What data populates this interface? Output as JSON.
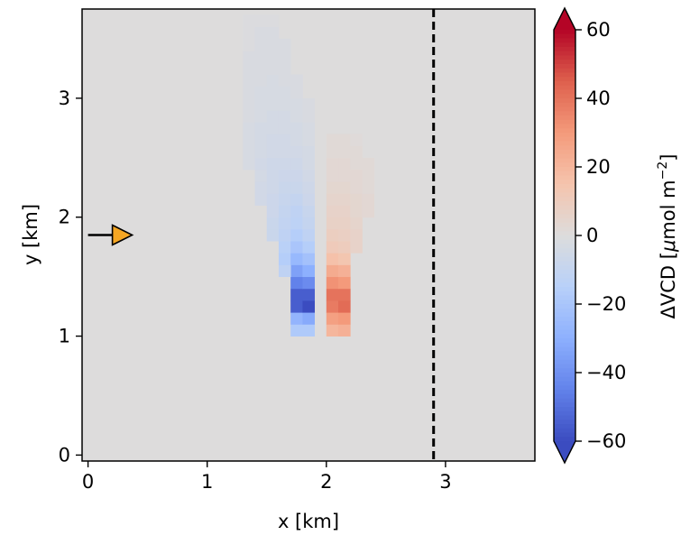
{
  "chart_data": {
    "type": "heatmap",
    "xlabel": "x [km]",
    "ylabel": "y [km]",
    "xlim": [
      -0.05,
      3.75
    ],
    "ylim": [
      -0.05,
      3.75
    ],
    "x_ticks": [
      "0",
      "1",
      "2",
      "3"
    ],
    "y_ticks": [
      "0",
      "1",
      "2",
      "3"
    ],
    "grid": false,
    "colorbar": {
      "label": "ΔVCD [μmol m⁻²]",
      "label_parts": {
        "main": "ΔVCD [",
        "mu": "μ",
        "mid": "mol m",
        "exp": "−2",
        "close": "]"
      },
      "range": [
        -60,
        60
      ],
      "ticks": [
        "60",
        "40",
        "20",
        "0",
        "−20",
        "−40",
        "−60"
      ],
      "tick_values": [
        60,
        40,
        20,
        0,
        -20,
        -40,
        -60
      ],
      "colormap": "coolwarm",
      "extend": "both"
    },
    "cell_size_km": 0.1,
    "plume": {
      "cells": [
        [
          1.75,
          1.05,
          -18
        ],
        [
          1.85,
          1.05,
          -18
        ],
        [
          1.75,
          1.15,
          -28
        ],
        [
          1.85,
          1.15,
          -32
        ],
        [
          1.75,
          1.25,
          -55
        ],
        [
          1.85,
          1.25,
          -60
        ],
        [
          1.75,
          1.35,
          -55
        ],
        [
          1.85,
          1.35,
          -55
        ],
        [
          1.75,
          1.45,
          -45
        ],
        [
          1.85,
          1.45,
          -42
        ],
        [
          1.75,
          1.55,
          -35
        ],
        [
          1.85,
          1.55,
          -30
        ],
        [
          1.65,
          1.55,
          -12
        ],
        [
          1.65,
          1.65,
          -16
        ],
        [
          1.75,
          1.65,
          -26
        ],
        [
          1.85,
          1.65,
          -22
        ],
        [
          1.65,
          1.75,
          -14
        ],
        [
          1.75,
          1.75,
          -20
        ],
        [
          1.85,
          1.75,
          -16
        ],
        [
          1.55,
          1.85,
          -8
        ],
        [
          1.65,
          1.85,
          -12
        ],
        [
          1.75,
          1.85,
          -16
        ],
        [
          1.85,
          1.85,
          -12
        ],
        [
          1.55,
          1.95,
          -8
        ],
        [
          1.65,
          1.95,
          -11
        ],
        [
          1.75,
          1.95,
          -13
        ],
        [
          1.85,
          1.95,
          -10
        ],
        [
          1.55,
          2.05,
          -7
        ],
        [
          1.65,
          2.05,
          -10
        ],
        [
          1.75,
          2.05,
          -12
        ],
        [
          1.85,
          2.05,
          -9
        ],
        [
          1.45,
          2.15,
          -5
        ],
        [
          1.55,
          2.15,
          -7
        ],
        [
          1.65,
          2.15,
          -9
        ],
        [
          1.75,
          2.15,
          -10
        ],
        [
          1.85,
          2.15,
          -7
        ],
        [
          1.45,
          2.25,
          -5
        ],
        [
          1.55,
          2.25,
          -6
        ],
        [
          1.65,
          2.25,
          -8
        ],
        [
          1.75,
          2.25,
          -8
        ],
        [
          1.85,
          2.25,
          -6
        ],
        [
          1.45,
          2.35,
          -4
        ],
        [
          1.55,
          2.35,
          -6
        ],
        [
          1.65,
          2.35,
          -7
        ],
        [
          1.75,
          2.35,
          -7
        ],
        [
          1.85,
          2.35,
          -5
        ],
        [
          1.35,
          2.45,
          -3
        ],
        [
          1.45,
          2.45,
          -5
        ],
        [
          1.55,
          2.45,
          -6
        ],
        [
          1.65,
          2.45,
          -6
        ],
        [
          1.75,
          2.45,
          -6
        ],
        [
          1.85,
          2.45,
          -4
        ],
        [
          1.35,
          2.55,
          -3
        ],
        [
          1.45,
          2.55,
          -4
        ],
        [
          1.55,
          2.55,
          -5
        ],
        [
          1.65,
          2.55,
          -5
        ],
        [
          1.75,
          2.55,
          -5
        ],
        [
          1.85,
          2.55,
          -4
        ],
        [
          1.35,
          2.65,
          -3
        ],
        [
          1.45,
          2.65,
          -4
        ],
        [
          1.55,
          2.65,
          -5
        ],
        [
          1.65,
          2.65,
          -5
        ],
        [
          1.75,
          2.65,
          -4
        ],
        [
          1.85,
          2.65,
          -3
        ],
        [
          1.35,
          2.75,
          -3
        ],
        [
          1.45,
          2.75,
          -4
        ],
        [
          1.55,
          2.75,
          -4
        ],
        [
          1.65,
          2.75,
          -4
        ],
        [
          1.75,
          2.75,
          -4
        ],
        [
          1.85,
          2.75,
          -3
        ],
        [
          1.35,
          2.85,
          -2
        ],
        [
          1.45,
          2.85,
          -3
        ],
        [
          1.55,
          2.85,
          -4
        ],
        [
          1.65,
          2.85,
          -4
        ],
        [
          1.75,
          2.85,
          -3
        ],
        [
          1.85,
          2.85,
          -2
        ],
        [
          1.35,
          2.95,
          -2
        ],
        [
          1.45,
          2.95,
          -3
        ],
        [
          1.55,
          2.95,
          -3
        ],
        [
          1.65,
          2.95,
          -3
        ],
        [
          1.75,
          2.95,
          -3
        ],
        [
          1.85,
          2.95,
          -2
        ],
        [
          1.35,
          3.05,
          -2
        ],
        [
          1.45,
          3.05,
          -3
        ],
        [
          1.55,
          3.05,
          -3
        ],
        [
          1.65,
          3.05,
          -3
        ],
        [
          1.75,
          3.05,
          -2
        ],
        [
          1.35,
          3.15,
          -2
        ],
        [
          1.45,
          3.15,
          -2
        ],
        [
          1.55,
          3.15,
          -3
        ],
        [
          1.65,
          3.15,
          -2
        ],
        [
          1.75,
          3.15,
          -2
        ],
        [
          1.35,
          3.25,
          -2
        ],
        [
          1.45,
          3.25,
          -2
        ],
        [
          1.55,
          3.25,
          -2
        ],
        [
          1.65,
          3.25,
          -2
        ],
        [
          1.35,
          3.35,
          -2
        ],
        [
          1.45,
          3.35,
          -2
        ],
        [
          1.55,
          3.35,
          -2
        ],
        [
          1.65,
          3.35,
          -2
        ],
        [
          1.35,
          3.45,
          -1
        ],
        [
          1.45,
          3.45,
          -2
        ],
        [
          1.55,
          3.45,
          -2
        ],
        [
          1.65,
          3.45,
          -2
        ],
        [
          1.35,
          3.55,
          -1
        ],
        [
          1.45,
          3.55,
          -2
        ],
        [
          1.55,
          3.55,
          -2
        ],
        [
          1.35,
          3.65,
          -1
        ],
        [
          1.45,
          3.65,
          -1
        ],
        [
          1.55,
          3.65,
          -1
        ],
        [
          2.05,
          1.05,
          20
        ],
        [
          2.15,
          1.05,
          22
        ],
        [
          2.05,
          1.15,
          28
        ],
        [
          2.15,
          1.15,
          30
        ],
        [
          2.05,
          1.25,
          38
        ],
        [
          2.15,
          1.25,
          42
        ],
        [
          2.05,
          1.35,
          40
        ],
        [
          2.15,
          1.35,
          40
        ],
        [
          2.05,
          1.45,
          32
        ],
        [
          2.15,
          1.45,
          30
        ],
        [
          2.05,
          1.55,
          24
        ],
        [
          2.15,
          1.55,
          22
        ],
        [
          2.05,
          1.65,
          16
        ],
        [
          2.15,
          1.65,
          14
        ],
        [
          2.05,
          1.75,
          11
        ],
        [
          2.15,
          1.75,
          10
        ],
        [
          2.25,
          1.75,
          6
        ],
        [
          2.05,
          1.85,
          9
        ],
        [
          2.15,
          1.85,
          8
        ],
        [
          2.25,
          1.85,
          6
        ],
        [
          2.05,
          1.95,
          7
        ],
        [
          2.15,
          1.95,
          7
        ],
        [
          2.25,
          1.95,
          5
        ],
        [
          2.05,
          2.05,
          6
        ],
        [
          2.15,
          2.05,
          6
        ],
        [
          2.25,
          2.05,
          4
        ],
        [
          2.35,
          2.05,
          3
        ],
        [
          2.05,
          2.15,
          5
        ],
        [
          2.15,
          2.15,
          5
        ],
        [
          2.25,
          2.15,
          4
        ],
        [
          2.35,
          2.15,
          3
        ],
        [
          2.05,
          2.25,
          4
        ],
        [
          2.15,
          2.25,
          4
        ],
        [
          2.25,
          2.25,
          3
        ],
        [
          2.35,
          2.25,
          2
        ],
        [
          2.05,
          2.35,
          3
        ],
        [
          2.15,
          2.35,
          3
        ],
        [
          2.25,
          2.35,
          3
        ],
        [
          2.35,
          2.35,
          2
        ],
        [
          2.05,
          2.45,
          3
        ],
        [
          2.15,
          2.45,
          3
        ],
        [
          2.25,
          2.45,
          2
        ],
        [
          2.35,
          2.45,
          2
        ],
        [
          2.05,
          2.55,
          2
        ],
        [
          2.15,
          2.55,
          2
        ],
        [
          2.25,
          2.55,
          2
        ],
        [
          2.05,
          2.65,
          2
        ],
        [
          2.15,
          2.65,
          2
        ],
        [
          2.25,
          2.65,
          1
        ]
      ]
    },
    "vertical_line": {
      "x": 2.9,
      "style": "dashed"
    },
    "source_marker": {
      "x": 0.28,
      "y": 1.85,
      "arrow_from_x": 0.0,
      "color": "#f5a623"
    }
  }
}
